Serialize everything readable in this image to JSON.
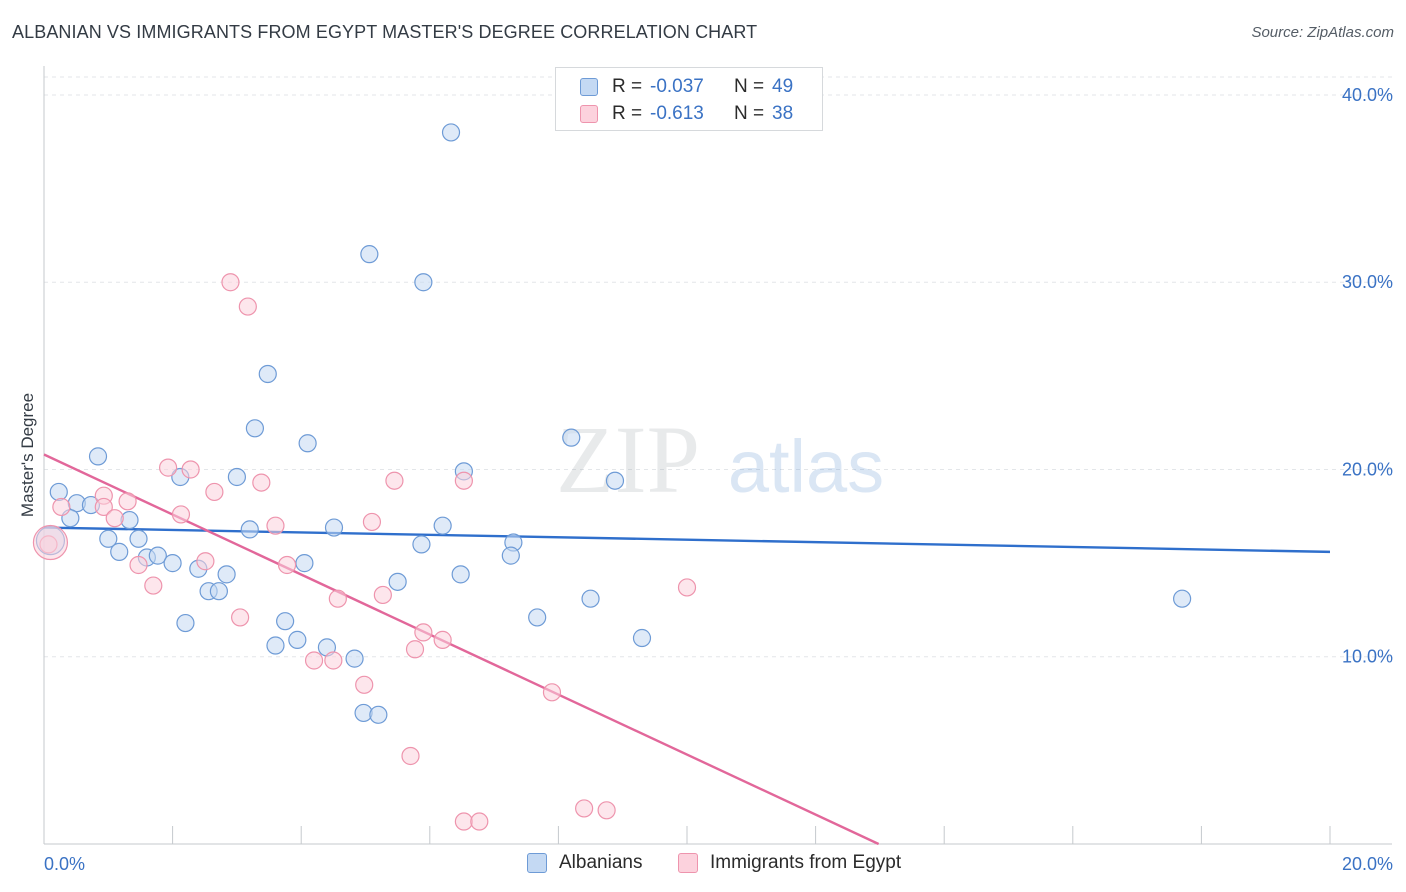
{
  "header": {
    "title": "ALBANIAN VS IMMIGRANTS FROM EGYPT MASTER'S DEGREE CORRELATION CHART",
    "source": "Source: ZipAtlas.com"
  },
  "watermark": {
    "zip": "ZIP",
    "atlas": "atlas"
  },
  "legend": {
    "rows": [
      {
        "r_label": "R =",
        "r_value": "-0.037",
        "n_label": "N =",
        "n_value": "49",
        "color": "#6e9bd6"
      },
      {
        "r_label": "R =",
        "r_value": "-0.613",
        "n_label": "N =",
        "n_value": "38",
        "color": "#ee94ad"
      }
    ]
  },
  "bottom_legend": {
    "items": [
      {
        "label": "Albanians",
        "color": "#6e9bd6"
      },
      {
        "label": "Immigrants from Egypt",
        "color": "#ee94ad"
      }
    ]
  },
  "chart_data": {
    "type": "scatter",
    "title": "ALBANIAN VS IMMIGRANTS FROM EGYPT MASTER'S DEGREE CORRELATION CHART",
    "xlabel": "",
    "ylabel": "Master's Degree",
    "xlim": [
      0,
      20
    ],
    "ylim": [
      0,
      40.96
    ],
    "x_ticks": [
      {
        "value": 0,
        "label": "0.0%"
      },
      {
        "value": 20,
        "label": "20.0%"
      }
    ],
    "y_ticks": [
      {
        "value": 10,
        "label": "10.0%"
      },
      {
        "value": 20,
        "label": "20.0%"
      },
      {
        "value": 30,
        "label": "30.0%"
      },
      {
        "value": 40,
        "label": "40.0%"
      }
    ],
    "grid": true,
    "series": [
      {
        "name": "Albanians",
        "color": "#6e9bd6",
        "fill": "#c4d9f3",
        "r": -0.037,
        "n": 49,
        "trend": {
          "x0": 0,
          "y0": 16.9,
          "x1": 20,
          "y1": 15.6
        },
        "points": [
          [
            6.33,
            38.0
          ],
          [
            5.06,
            31.5
          ],
          [
            5.9,
            30.0
          ],
          [
            3.48,
            25.1
          ],
          [
            3.28,
            22.2
          ],
          [
            4.1,
            21.4
          ],
          [
            8.2,
            21.7
          ],
          [
            0.84,
            20.7
          ],
          [
            2.12,
            19.6
          ],
          [
            3.0,
            19.6
          ],
          [
            6.53,
            19.9
          ],
          [
            8.88,
            19.4
          ],
          [
            0.23,
            18.8
          ],
          [
            0.51,
            18.2
          ],
          [
            0.73,
            18.1
          ],
          [
            0.41,
            17.4
          ],
          [
            1.33,
            17.3
          ],
          [
            3.2,
            16.8
          ],
          [
            4.51,
            16.9
          ],
          [
            6.2,
            17.0
          ],
          [
            0.1,
            16.2
          ],
          [
            1.0,
            16.3
          ],
          [
            1.47,
            16.3
          ],
          [
            5.87,
            16.0
          ],
          [
            7.3,
            16.1
          ],
          [
            1.17,
            15.6
          ],
          [
            1.6,
            15.3
          ],
          [
            1.77,
            15.4
          ],
          [
            2.0,
            15.0
          ],
          [
            2.4,
            14.7
          ],
          [
            2.84,
            14.4
          ],
          [
            4.05,
            15.0
          ],
          [
            7.26,
            15.4
          ],
          [
            6.48,
            14.4
          ],
          [
            5.5,
            14.0
          ],
          [
            2.56,
            13.5
          ],
          [
            2.72,
            13.5
          ],
          [
            8.5,
            13.1
          ],
          [
            17.7,
            13.1
          ],
          [
            2.2,
            11.8
          ],
          [
            3.75,
            11.9
          ],
          [
            7.67,
            12.1
          ],
          [
            3.6,
            10.6
          ],
          [
            3.94,
            10.9
          ],
          [
            4.4,
            10.5
          ],
          [
            9.3,
            11.0
          ],
          [
            4.83,
            9.9
          ],
          [
            4.97,
            7.0
          ],
          [
            5.2,
            6.9
          ]
        ]
      },
      {
        "name": "Immigrants from Egypt",
        "color": "#ee94ad",
        "fill": "#fcd2dd",
        "r": -0.613,
        "n": 38,
        "trend": {
          "x0": 0,
          "y0": 20.8,
          "x1": 12.98,
          "y1": 0
        },
        "points": [
          [
            2.9,
            30.0
          ],
          [
            3.17,
            28.7
          ],
          [
            1.93,
            20.1
          ],
          [
            2.28,
            20.0
          ],
          [
            3.38,
            19.3
          ],
          [
            5.45,
            19.4
          ],
          [
            6.53,
            19.4
          ],
          [
            0.93,
            18.6
          ],
          [
            2.65,
            18.8
          ],
          [
            0.27,
            18.0
          ],
          [
            0.93,
            18.0
          ],
          [
            1.3,
            18.3
          ],
          [
            2.13,
            17.6
          ],
          [
            1.1,
            17.4
          ],
          [
            3.6,
            17.0
          ],
          [
            5.1,
            17.2
          ],
          [
            0.07,
            16.0
          ],
          [
            1.47,
            14.9
          ],
          [
            2.51,
            15.1
          ],
          [
            3.78,
            14.9
          ],
          [
            1.7,
            13.8
          ],
          [
            4.57,
            13.1
          ],
          [
            5.27,
            13.3
          ],
          [
            10.0,
            13.7
          ],
          [
            3.05,
            12.1
          ],
          [
            5.9,
            11.3
          ],
          [
            6.2,
            10.9
          ],
          [
            5.77,
            10.4
          ],
          [
            4.2,
            9.8
          ],
          [
            4.5,
            9.8
          ],
          [
            4.98,
            8.5
          ],
          [
            7.9,
            8.1
          ],
          [
            5.7,
            4.7
          ],
          [
            8.4,
            1.9
          ],
          [
            8.75,
            1.8
          ],
          [
            6.53,
            1.2
          ],
          [
            6.77,
            1.2
          ],
          [
            0.1,
            16.1
          ]
        ]
      }
    ]
  }
}
